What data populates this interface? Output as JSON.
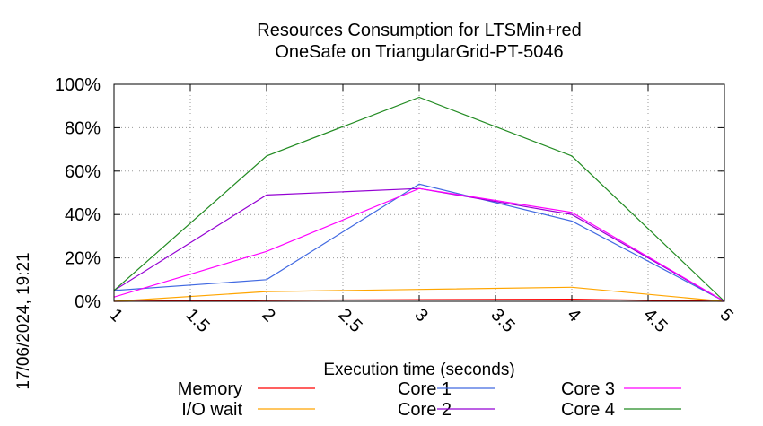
{
  "chart_data": {
    "type": "line",
    "title": "Resources Consumption for LTSMin+red\nOneSafe on TriangularGrid-PT-5046",
    "xlabel": "Execution time (seconds)",
    "ylabel": "",
    "timestamp": "17/06/2024, 19:21",
    "xlim": [
      1,
      5
    ],
    "ylim": [
      0,
      100
    ],
    "x_ticks": [
      "1",
      "1.5",
      "2",
      "2.5",
      "3",
      "3.5",
      "4",
      "4.5",
      "5"
    ],
    "y_ticks": [
      "0%",
      "20%",
      "40%",
      "60%",
      "80%",
      "100%"
    ],
    "grid": true,
    "legend_position": "bottom",
    "x": [
      1,
      2,
      3,
      4,
      5
    ],
    "series": [
      {
        "name": "Memory",
        "color": "#ff0000",
        "values": [
          0,
          0.5,
          0.8,
          1.0,
          0
        ]
      },
      {
        "name": "I/O wait",
        "color": "#ffa500",
        "values": [
          0,
          4.5,
          5.5,
          6.5,
          0
        ]
      },
      {
        "name": "Core 1",
        "color": "#4169e1",
        "values": [
          5,
          10,
          54,
          37,
          0
        ]
      },
      {
        "name": "Core 2",
        "color": "#9400d3",
        "values": [
          5,
          49,
          52,
          40,
          0
        ]
      },
      {
        "name": "Core 3",
        "color": "#ff00ff",
        "values": [
          2,
          23,
          52,
          41,
          0
        ]
      },
      {
        "name": "Core 4",
        "color": "#228b22",
        "values": [
          5,
          67,
          94,
          67,
          0
        ]
      }
    ]
  }
}
